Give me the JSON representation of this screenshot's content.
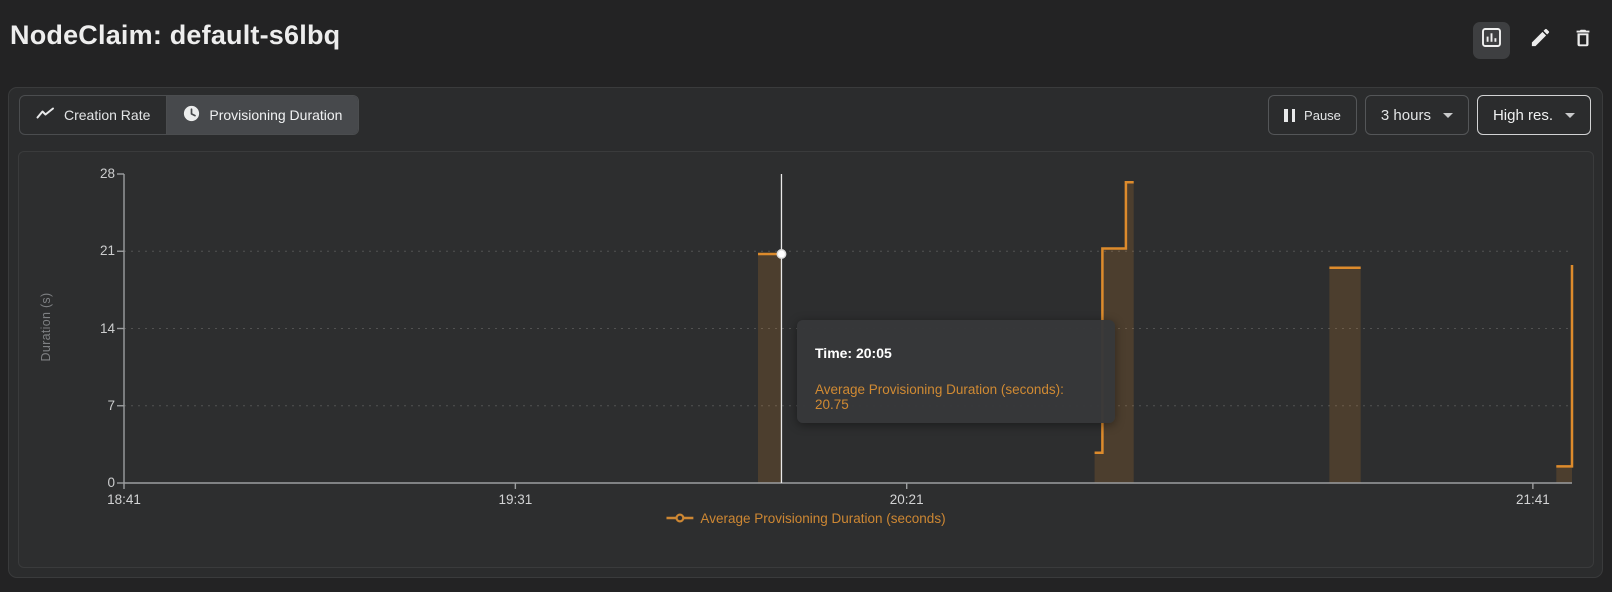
{
  "header": {
    "title": "NodeClaim: default-s6lbq"
  },
  "toolbar": {
    "tabs": [
      {
        "label": "Creation Rate",
        "active": false
      },
      {
        "label": "Provisioning Duration",
        "active": true
      }
    ],
    "pause_label": "Pause",
    "time_range": "3 hours",
    "resolution": "High res."
  },
  "tooltip": {
    "time_line": "Time: 20:05",
    "value_line": "Average Provisioning Duration (seconds): 20.75"
  },
  "chart_data": {
    "type": "line",
    "step": true,
    "title": "",
    "xlabel": "",
    "ylabel": "Duration (s)",
    "x_ticks": [
      "18:41",
      "19:31",
      "20:21",
      "21:41"
    ],
    "y_ticks": [
      0,
      7,
      14,
      21,
      28
    ],
    "ylim": [
      0,
      28
    ],
    "x_minutes_span": 185,
    "grid": true,
    "legend_position": "bottom",
    "colors": {
      "accent_orange": "#dd8b2c",
      "crosshair": "#e9e9e9",
      "axis": "#9c9ea0",
      "gridline": "#525252"
    },
    "series": [
      {
        "name": "Average Provisioning Duration (seconds)",
        "color": "#dd8b2c",
        "fill_opacity": 0.18,
        "segments": [
          {
            "points": [
              {
                "t": "20:02",
                "v": 20.75
              },
              {
                "t": "20:05",
                "v": 20.75
              }
            ]
          },
          {
            "points": [
              {
                "t": "20:45",
                "v": 2.75
              },
              {
                "t": "20:46",
                "v": 2.75
              },
              {
                "t": "20:46",
                "v": 21.25
              },
              {
                "t": "20:49",
                "v": 21.25
              },
              {
                "t": "20:49",
                "v": 27.25
              },
              {
                "t": "20:50",
                "v": 27.25
              }
            ]
          },
          {
            "points": [
              {
                "t": "21:15",
                "v": 19.5
              },
              {
                "t": "21:19",
                "v": 19.5
              }
            ]
          },
          {
            "points": [
              {
                "t": "21:44",
                "v": 1.5
              },
              {
                "t": "21:46",
                "v": 1.5
              },
              {
                "t": "21:46",
                "v": 19.75
              }
            ]
          }
        ]
      }
    ],
    "hover": {
      "t": "20:05",
      "v": 20.75
    }
  }
}
